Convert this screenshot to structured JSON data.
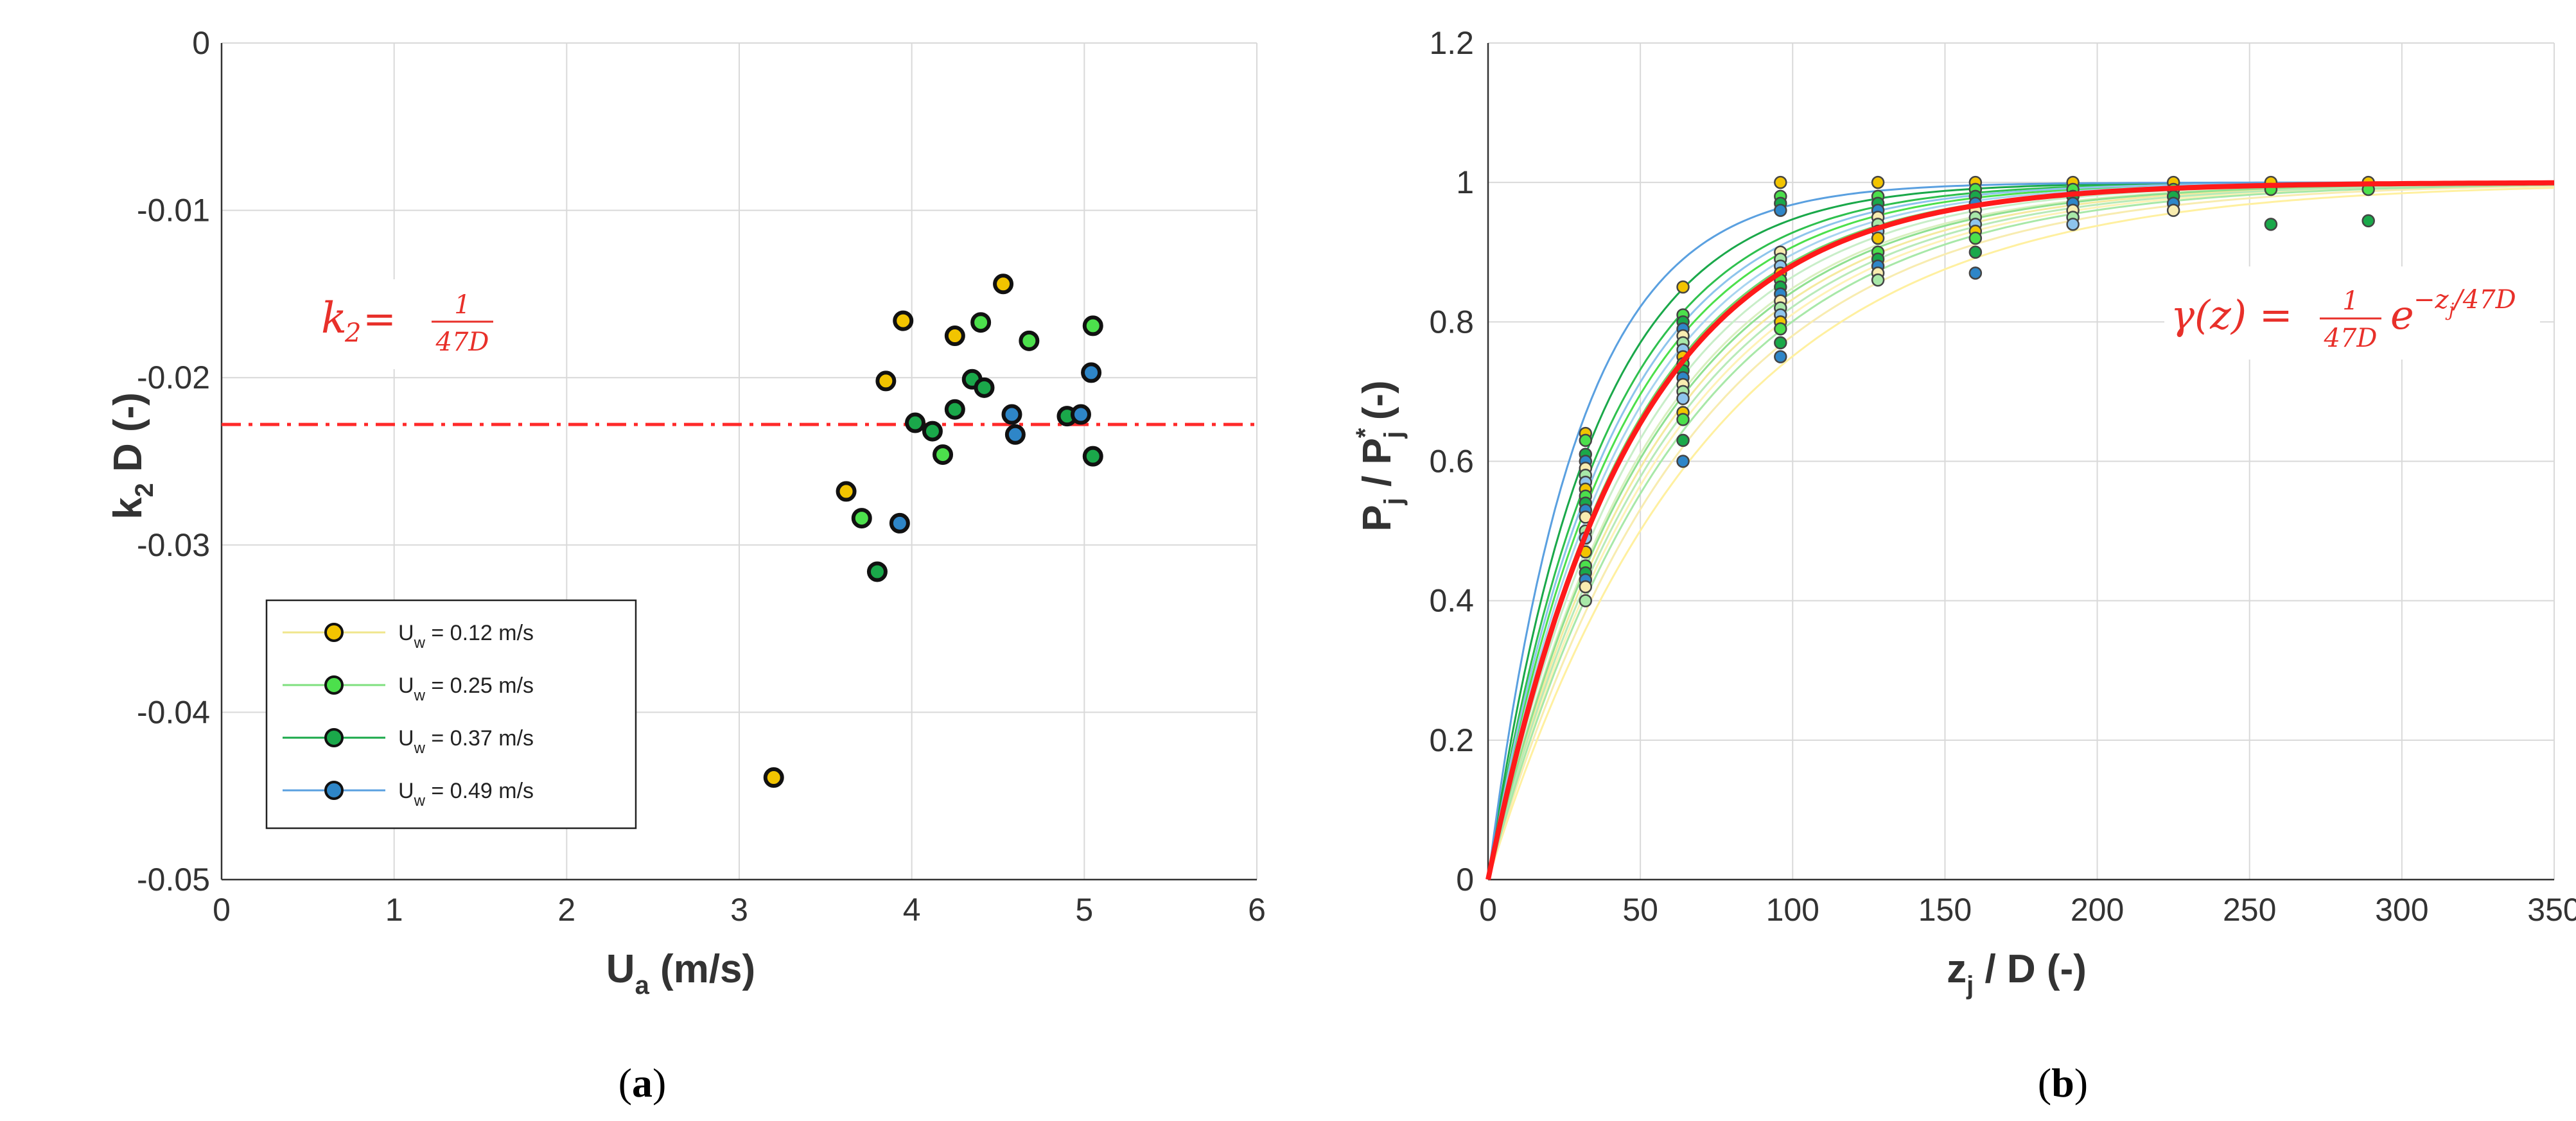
{
  "chart_data": [
    {
      "panel": "(a)",
      "panel_letter": "a",
      "type": "scatter",
      "xlabel": "U",
      "xlabel_sub": "a",
      "xlabel_rest": " (m/s)",
      "ylabel": "k",
      "ylabel_sub": "2",
      "ylabel_rest": " D (-)",
      "xlim": [
        0,
        6
      ],
      "ylim": [
        -0.05,
        0
      ],
      "xticks": [
        0,
        1,
        2,
        3,
        4,
        5,
        6
      ],
      "yticks": [
        0,
        -0.01,
        -0.02,
        -0.03,
        -0.04,
        -0.05
      ],
      "xtick_labels": [
        "0",
        "1",
        "2",
        "3",
        "4",
        "5",
        "6"
      ],
      "ytick_labels": [
        "0",
        "-0.01",
        "-0.02",
        "-0.03",
        "-0.04",
        "-0.05"
      ],
      "grid": true,
      "reference_line": {
        "y": -0.0228,
        "style": "dash-dot",
        "color": "#ff2a2a"
      },
      "annotation": {
        "lhs": "k",
        "lhs_sub": "2",
        "equals": " = ",
        "num": "1",
        "den": "47D"
      },
      "legend": {
        "placement": "lower-left",
        "entries": [
          {
            "label": "U",
            "sub": "w",
            "rest": " = 0.12 m/s",
            "color": "#f2c400",
            "line": "#f0e68c"
          },
          {
            "label": "U",
            "sub": "w",
            "rest": " = 0.25 m/s",
            "color": "#4ce04c",
            "line": "#7fe07f"
          },
          {
            "label": "U",
            "sub": "w",
            "rest": " = 0.37 m/s",
            "color": "#1aa84a",
            "line": "#1aa84a"
          },
          {
            "label": "U",
            "sub": "w",
            "rest": " = 0.49 m/s",
            "color": "#2e86c8",
            "line": "#5aa0e0"
          }
        ]
      },
      "series": [
        {
          "name": "Uw = 0.12 m/s",
          "color": "#f2c400",
          "points": [
            [
              3.2,
              -0.0439
            ],
            [
              3.62,
              -0.0268
            ],
            [
              3.85,
              -0.0202
            ],
            [
              3.95,
              -0.0166
            ],
            [
              4.25,
              -0.0175
            ],
            [
              4.53,
              -0.0144
            ]
          ]
        },
        {
          "name": "Uw = 0.25 m/s",
          "color": "#4ce04c",
          "points": [
            [
              3.71,
              -0.0284
            ],
            [
              4.18,
              -0.0246
            ],
            [
              4.4,
              -0.0167
            ],
            [
              4.68,
              -0.0178
            ],
            [
              5.05,
              -0.0169
            ]
          ]
        },
        {
          "name": "Uw = 0.37 m/s",
          "color": "#1aa84a",
          "points": [
            [
              3.8,
              -0.0316
            ],
            [
              4.02,
              -0.0227
            ],
            [
              4.12,
              -0.0232
            ],
            [
              4.25,
              -0.0219
            ],
            [
              4.35,
              -0.0201
            ],
            [
              4.42,
              -0.0206
            ],
            [
              4.9,
              -0.0223
            ],
            [
              5.05,
              -0.0247
            ]
          ]
        },
        {
          "name": "Uw = 0.49 m/s",
          "color": "#2e86c8",
          "points": [
            [
              3.93,
              -0.0287
            ],
            [
              4.58,
              -0.0222
            ],
            [
              4.6,
              -0.0234
            ],
            [
              4.98,
              -0.0222
            ],
            [
              5.04,
              -0.0197
            ]
          ]
        }
      ]
    },
    {
      "panel": "(b)",
      "panel_letter": "b",
      "type": "line",
      "xlabel": "z",
      "xlabel_sub": "j",
      "xlabel_rest": " / D (-)",
      "ylabel": "P",
      "ylabel_sub": "j",
      "ylabel_mid": " / P",
      "ylabel_sup": "*",
      "ylabel_sub2": "j",
      "ylabel_rest": " (-)",
      "xlim": [
        0,
        350
      ],
      "ylim": [
        0,
        1.2
      ],
      "xticks": [
        0,
        50,
        100,
        150,
        200,
        250,
        300,
        350
      ],
      "yticks": [
        0,
        0.2,
        0.4,
        0.6,
        0.8,
        1,
        1.2
      ],
      "xtick_labels": [
        "0",
        "50",
        "100",
        "150",
        "200",
        "250",
        "300",
        "350"
      ],
      "ytick_labels": [
        "0",
        "0.2",
        "0.4",
        "0.6",
        "0.8",
        "1",
        "1.2"
      ],
      "grid": true,
      "annotation": {
        "lhs": "γ(z) = ",
        "num": "1",
        "den": "47D",
        "base": "e",
        "exponent": "−z",
        "exponent_sub": "j",
        "exponent_rest": "/47D"
      },
      "model": {
        "name": "gamma",
        "decay_length": 47,
        "color": "#ff1a1a"
      },
      "fitted_curves": [
        {
          "color": "#fff0a0",
          "decay_length": 72
        },
        {
          "color": "#f8ecb0",
          "decay_length": 66
        },
        {
          "color": "#fff2b8",
          "decay_length": 60
        },
        {
          "color": "#f5eaa0",
          "decay_length": 56
        },
        {
          "color": "#d9f0c0",
          "decay_length": 53
        },
        {
          "color": "#c8eec8",
          "decay_length": 50
        },
        {
          "color": "#b8eab8",
          "decay_length": 58
        },
        {
          "color": "#a8e8a8",
          "decay_length": 62
        },
        {
          "color": "#90e090",
          "decay_length": 54
        },
        {
          "color": "#70d870",
          "decay_length": 46
        },
        {
          "color": "#4ce04c",
          "decay_length": 42
        },
        {
          "color": "#2ec04e",
          "decay_length": 38
        },
        {
          "color": "#1aa84a",
          "decay_length": 34
        },
        {
          "color": "#a8d4f0",
          "decay_length": 44
        },
        {
          "color": "#8ec4ec",
          "decay_length": 40
        },
        {
          "color": "#5aa0e0",
          "decay_length": 29
        }
      ],
      "scatter_columns": [
        {
          "x": 32,
          "values": [
            0.64,
            0.63,
            0.61,
            0.6,
            0.59,
            0.58,
            0.57,
            0.56,
            0.55,
            0.54,
            0.53,
            0.52,
            0.5,
            0.49,
            0.47,
            0.45,
            0.44,
            0.43,
            0.42,
            0.4
          ]
        },
        {
          "x": 64,
          "values": [
            0.85,
            0.81,
            0.8,
            0.79,
            0.78,
            0.77,
            0.76,
            0.75,
            0.74,
            0.73,
            0.72,
            0.71,
            0.7,
            0.69,
            0.67,
            0.66,
            0.63,
            0.6
          ]
        },
        {
          "x": 96,
          "values": [
            1.0,
            0.98,
            0.97,
            0.96,
            0.9,
            0.89,
            0.88,
            0.87,
            0.86,
            0.85,
            0.84,
            0.83,
            0.82,
            0.81,
            0.8,
            0.79,
            0.77,
            0.75
          ]
        },
        {
          "x": 128,
          "values": [
            1.0,
            0.98,
            0.97,
            0.96,
            0.95,
            0.94,
            0.93,
            0.92,
            0.9,
            0.89,
            0.88,
            0.87,
            0.86
          ]
        },
        {
          "x": 160,
          "values": [
            1.0,
            0.99,
            0.98,
            0.97,
            0.96,
            0.95,
            0.94,
            0.93,
            0.92,
            0.9,
            0.87
          ]
        },
        {
          "x": 192,
          "values": [
            1.0,
            0.99,
            0.98,
            0.97,
            0.96,
            0.95,
            0.94
          ]
        },
        {
          "x": 225,
          "values": [
            1.0,
            0.99,
            0.98,
            0.97,
            0.96
          ]
        },
        {
          "x": 257,
          "values": [
            1.0,
            0.99,
            0.94
          ]
        },
        {
          "x": 289,
          "values": [
            1.0,
            0.99,
            0.945
          ]
        }
      ],
      "point_colors": [
        "#f2c400",
        "#4ce04c",
        "#1aa84a",
        "#2e86c8",
        "#f8ecb0",
        "#a8e8a8",
        "#8ec4ec"
      ]
    }
  ]
}
